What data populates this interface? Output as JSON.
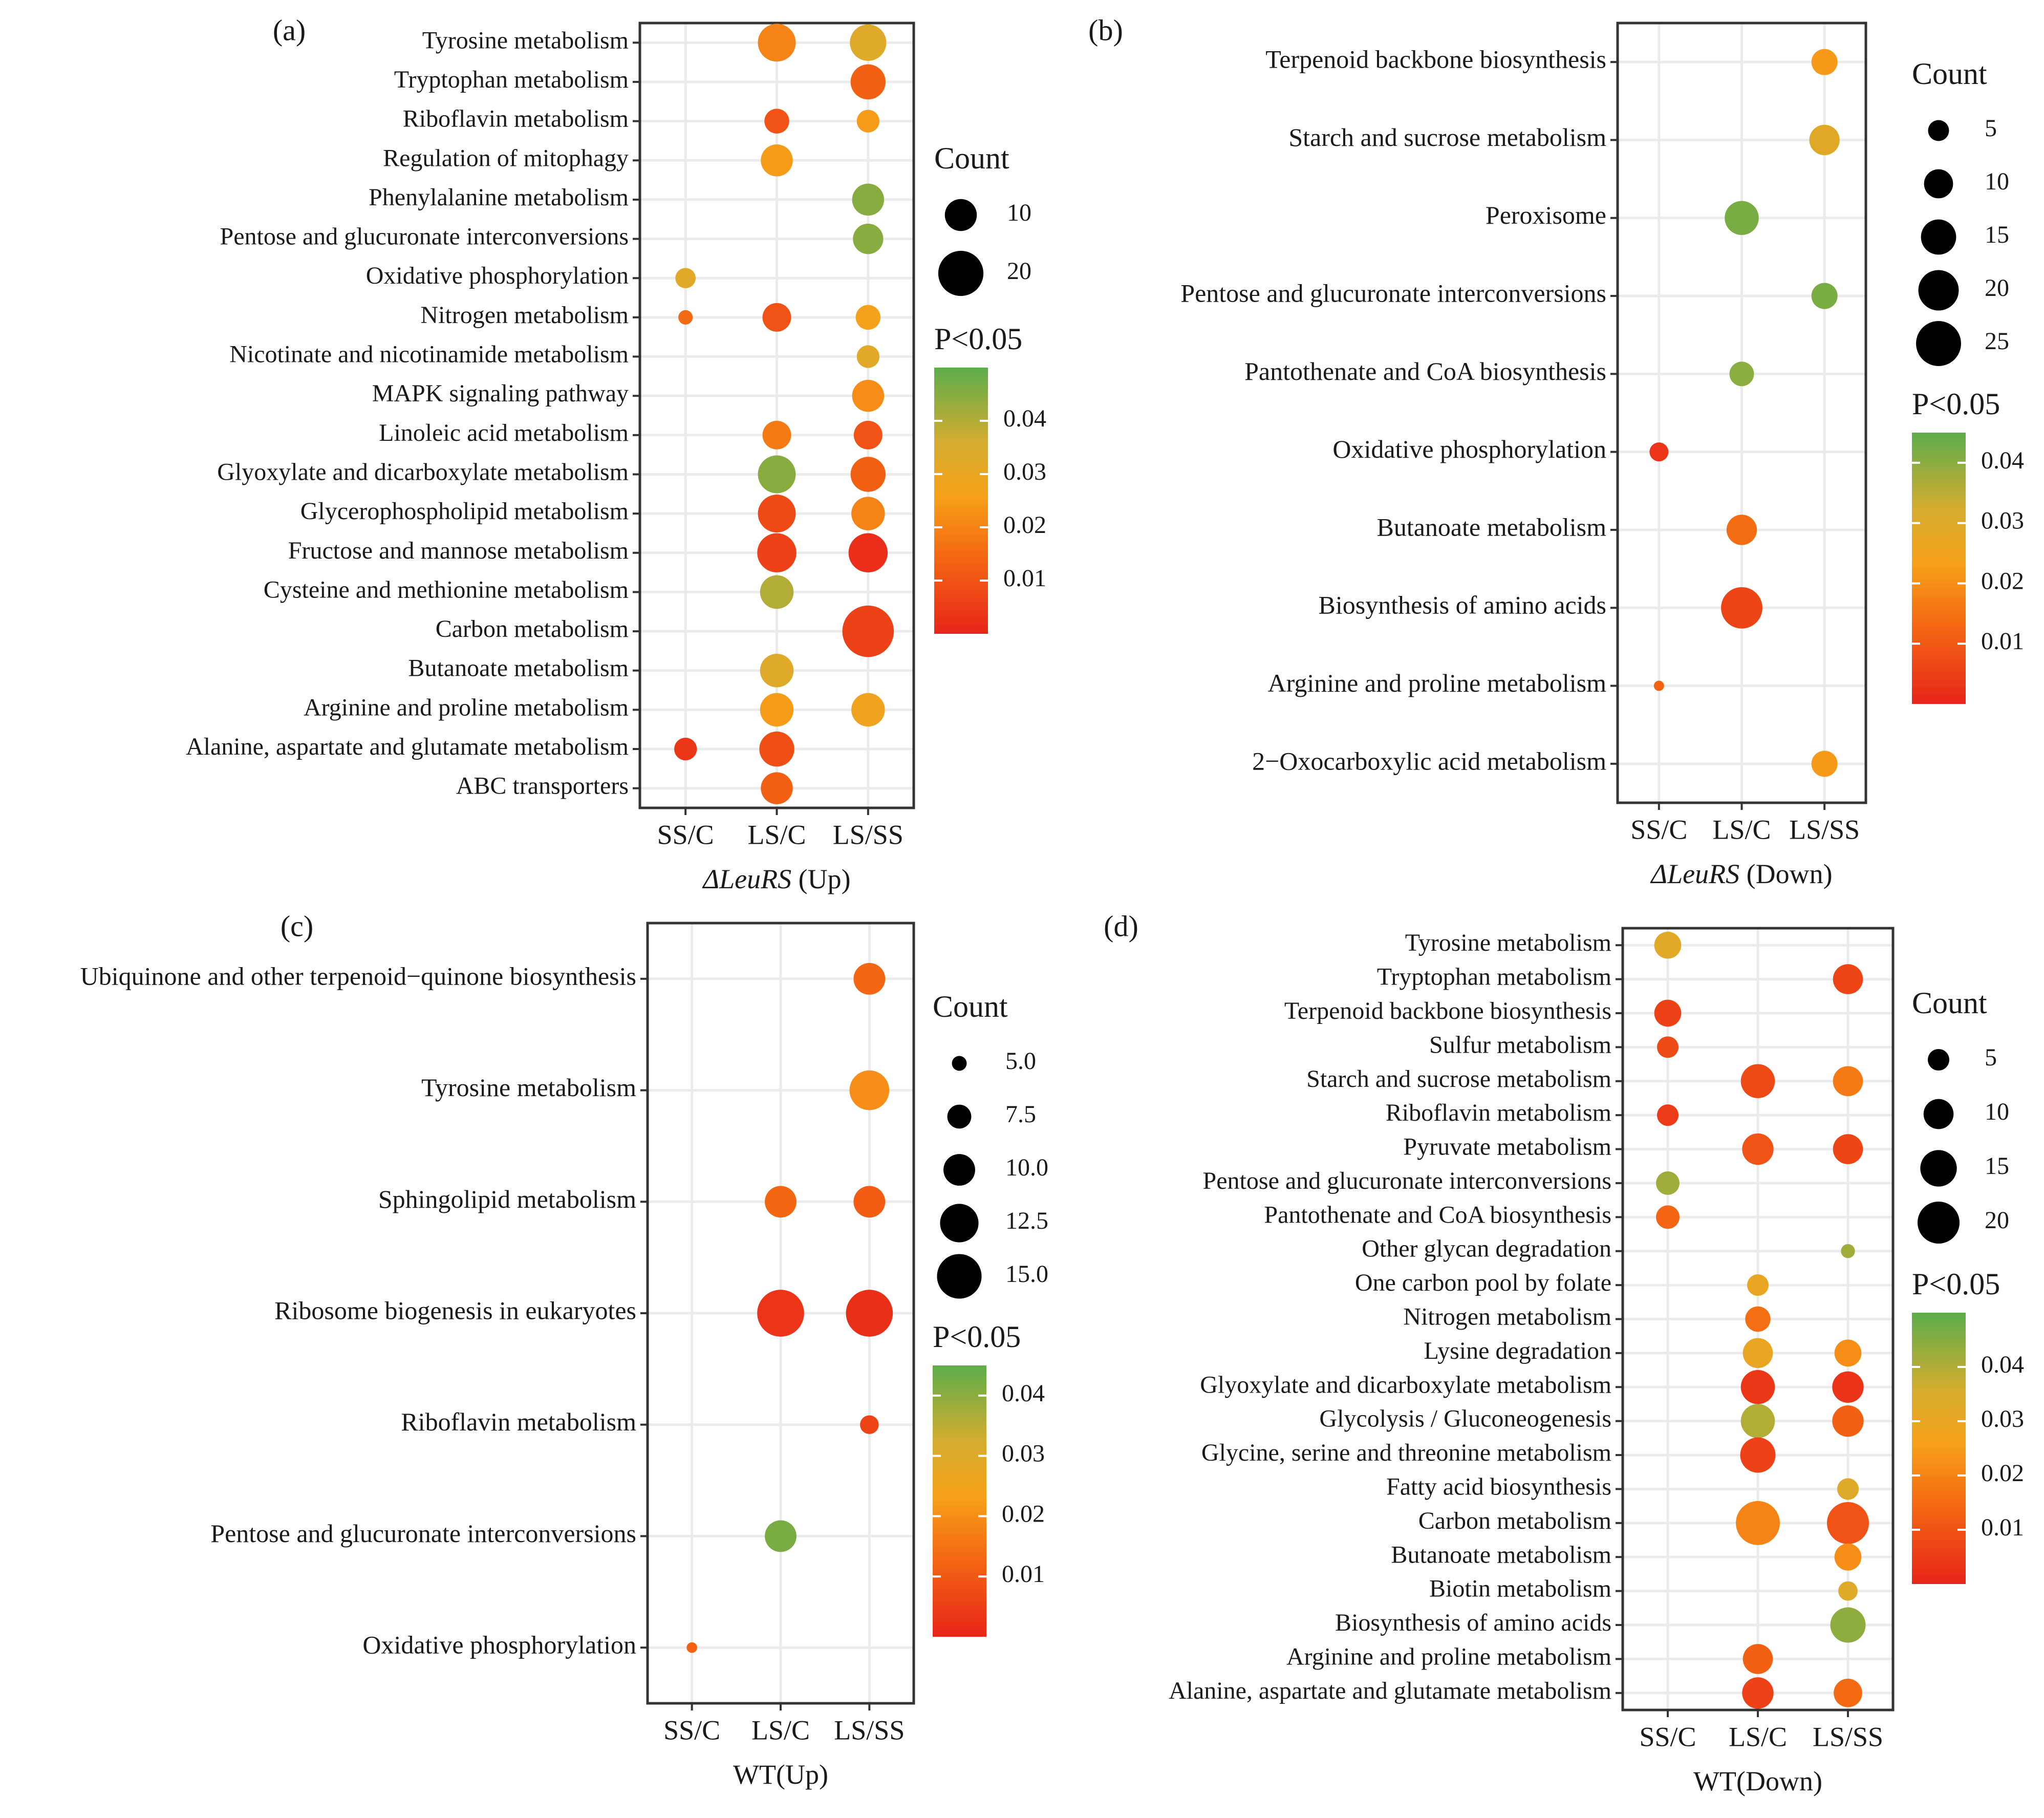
{
  "figure": {
    "legend_count_title": "Count",
    "legend_p_title": "P<0.05",
    "p_tick_labels": [
      "0.04",
      "0.03",
      "0.02",
      "0.01"
    ],
    "colors": {
      "low_p": "#e8251a",
      "mid_p": "#f7a11a",
      "mid2_p": "#d4ad2f",
      "high_p": "#5cad4b"
    }
  },
  "chart_data": [
    {
      "type": "scatter",
      "panel": "(a)",
      "title": "",
      "xlabel_italic": "ΔLeuRS",
      "xlabel_rest": " (Up)",
      "categories": [
        "SS/C",
        "LS/C",
        "LS/SS"
      ],
      "pathways": [
        "Tyrosine metabolism",
        "Tryptophan metabolism",
        "Riboflavin metabolism",
        "Regulation of mitophagy",
        "Phenylalanine metabolism",
        "Pentose and glucuronate interconversions",
        "Oxidative phosphorylation",
        "Nitrogen metabolism",
        "Nicotinate and nicotinamide metabolism",
        "MAPK signaling pathway",
        "Linoleic acid metabolism",
        "Glyoxylate and dicarboxylate metabolism",
        "Glycerophospholipid metabolism",
        "Fructose and mannose metabolism",
        "Cysteine and methionine metabolism",
        "Carbon metabolism",
        "Butanoate metabolism",
        "Arginine and proline metabolism",
        "Alanine, aspartate and glutamate metabolism",
        "ABC transporters"
      ],
      "count_range": [
        1,
        30
      ],
      "size_legend": [
        "10",
        "20"
      ],
      "size_legend_values": [
        10,
        20
      ],
      "p_range": [
        0,
        0.05
      ],
      "points": [
        {
          "pathway": "Tyrosine metabolism",
          "comparison": "LS/C",
          "count": 14,
          "p": 0.02
        },
        {
          "pathway": "Tyrosine metabolism",
          "comparison": "LS/SS",
          "count": 13,
          "p": 0.033
        },
        {
          "pathway": "Tryptophan metabolism",
          "comparison": "LS/SS",
          "count": 12,
          "p": 0.013
        },
        {
          "pathway": "Riboflavin metabolism",
          "comparison": "LS/C",
          "count": 6,
          "p": 0.01
        },
        {
          "pathway": "Riboflavin metabolism",
          "comparison": "LS/SS",
          "count": 5,
          "p": 0.025
        },
        {
          "pathway": "Regulation of mitophagy",
          "comparison": "LS/C",
          "count": 10,
          "p": 0.025
        },
        {
          "pathway": "Phenylalanine metabolism",
          "comparison": "LS/SS",
          "count": 10,
          "p": 0.045
        },
        {
          "pathway": "Pentose and glucuronate interconversions",
          "comparison": "LS/SS",
          "count": 9,
          "p": 0.045
        },
        {
          "pathway": "Oxidative phosphorylation",
          "comparison": "SS/C",
          "count": 4,
          "p": 0.032
        },
        {
          "pathway": "Nitrogen metabolism",
          "comparison": "SS/C",
          "count": 2,
          "p": 0.015
        },
        {
          "pathway": "Nitrogen metabolism",
          "comparison": "LS/C",
          "count": 8,
          "p": 0.01
        },
        {
          "pathway": "Nitrogen metabolism",
          "comparison": "LS/SS",
          "count": 6,
          "p": 0.027
        },
        {
          "pathway": "Nicotinate and nicotinamide metabolism",
          "comparison": "LS/SS",
          "count": 5,
          "p": 0.032
        },
        {
          "pathway": "MAPK signaling pathway",
          "comparison": "LS/SS",
          "count": 10,
          "p": 0.022
        },
        {
          "pathway": "Linoleic acid metabolism",
          "comparison": "LS/C",
          "count": 8,
          "p": 0.018
        },
        {
          "pathway": "Linoleic acid metabolism",
          "comparison": "LS/SS",
          "count": 8,
          "p": 0.01
        },
        {
          "pathway": "Glyoxylate and dicarboxylate metabolism",
          "comparison": "LS/C",
          "count": 14,
          "p": 0.045
        },
        {
          "pathway": "Glyoxylate and dicarboxylate metabolism",
          "comparison": "LS/SS",
          "count": 12,
          "p": 0.013
        },
        {
          "pathway": "Glycerophospholipid metabolism",
          "comparison": "LS/C",
          "count": 14,
          "p": 0.008
        },
        {
          "pathway": "Glycerophospholipid metabolism",
          "comparison": "LS/SS",
          "count": 11,
          "p": 0.02
        },
        {
          "pathway": "Fructose and mannose metabolism",
          "comparison": "LS/C",
          "count": 15,
          "p": 0.006
        },
        {
          "pathway": "Fructose and mannose metabolism",
          "comparison": "LS/SS",
          "count": 15,
          "p": 0.002
        },
        {
          "pathway": "Cysteine and methionine metabolism",
          "comparison": "LS/C",
          "count": 11,
          "p": 0.04
        },
        {
          "pathway": "Carbon metabolism",
          "comparison": "LS/SS",
          "count": 26,
          "p": 0.006
        },
        {
          "pathway": "Butanoate metabolism",
          "comparison": "LS/C",
          "count": 11,
          "p": 0.033
        },
        {
          "pathway": "Arginine and proline metabolism",
          "comparison": "LS/C",
          "count": 11,
          "p": 0.025
        },
        {
          "pathway": "Arginine and proline metabolism",
          "comparison": "LS/SS",
          "count": 11,
          "p": 0.028
        },
        {
          "pathway": "Alanine, aspartate and glutamate metabolism",
          "comparison": "SS/C",
          "count": 5,
          "p": 0.004
        },
        {
          "pathway": "Alanine, aspartate and glutamate metabolism",
          "comparison": "LS/C",
          "count": 12,
          "p": 0.009
        },
        {
          "pathway": "ABC transporters",
          "comparison": "LS/C",
          "count": 10,
          "p": 0.013
        }
      ]
    },
    {
      "type": "scatter",
      "panel": "(b)",
      "title": "",
      "xlabel_italic": "ΔLeuRS",
      "xlabel_rest": " (Down)",
      "categories": [
        "SS/C",
        "LS/C",
        "LS/SS"
      ],
      "pathways": [
        "Terpenoid backbone biosynthesis",
        "Starch and sucrose metabolism",
        "Peroxisome",
        "Pentose and glucuronate interconversions",
        "Pantothenate and CoA biosynthesis",
        "Oxidative phosphorylation",
        "Butanoate metabolism",
        "Biosynthesis of amino acids",
        "Arginine and proline metabolism",
        "2−Oxocarboxylic acid metabolism"
      ],
      "count_range": [
        1,
        30
      ],
      "size_legend": [
        "5",
        "10",
        "15",
        "20",
        "25"
      ],
      "size_legend_values": [
        5,
        10,
        15,
        20,
        25
      ],
      "p_range": [
        0,
        0.045
      ],
      "points": [
        {
          "pathway": "Terpenoid backbone biosynthesis",
          "comparison": "LS/SS",
          "count": 8,
          "p": 0.022
        },
        {
          "pathway": "Starch and sucrose metabolism",
          "comparison": "LS/SS",
          "count": 11,
          "p": 0.029
        },
        {
          "pathway": "Peroxisome",
          "comparison": "LS/C",
          "count": 14,
          "p": 0.042
        },
        {
          "pathway": "Pentose and glucuronate interconversions",
          "comparison": "LS/SS",
          "count": 8,
          "p": 0.042
        },
        {
          "pathway": "Pantothenate and CoA biosynthesis",
          "comparison": "LS/C",
          "count": 7,
          "p": 0.04
        },
        {
          "pathway": "Oxidative phosphorylation",
          "comparison": "SS/C",
          "count": 4,
          "p": 0.003
        },
        {
          "pathway": "Butanoate metabolism",
          "comparison": "LS/C",
          "count": 11,
          "p": 0.014
        },
        {
          "pathway": "Biosynthesis of amino acids",
          "comparison": "LS/C",
          "count": 21,
          "p": 0.006
        },
        {
          "pathway": "Arginine and proline metabolism",
          "comparison": "SS/C",
          "count": 1,
          "p": 0.012
        },
        {
          "pathway": "2−Oxocarboxylic acid metabolism",
          "comparison": "LS/SS",
          "count": 8,
          "p": 0.022
        }
      ]
    },
    {
      "type": "scatter",
      "panel": "(c)",
      "title": "",
      "xlabel_italic": "",
      "xlabel_rest": "WT(Up)",
      "categories": [
        "SS/C",
        "LS/C",
        "LS/SS"
      ],
      "pathways": [
        "Ubiquinone and other terpenoid−quinone biosynthesis",
        "Tyrosine metabolism",
        "Sphingolipid metabolism",
        "Ribosome biogenesis in eukaryotes",
        "Riboflavin metabolism",
        "Pentose and glucuronate interconversions",
        "Oxidative phosphorylation"
      ],
      "count_range": [
        3.5,
        17
      ],
      "size_legend": [
        "5.0",
        "7.5",
        "10.0",
        "12.5",
        "15.0"
      ],
      "size_legend_values": [
        5,
        7.5,
        10,
        12.5,
        15
      ],
      "p_range": [
        0,
        0.045
      ],
      "points": [
        {
          "pathway": "Ubiquinone and other terpenoid−quinone biosynthesis",
          "comparison": "LS/SS",
          "count": 10,
          "p": 0.013
        },
        {
          "pathway": "Tyrosine metabolism",
          "comparison": "LS/SS",
          "count": 13,
          "p": 0.02
        },
        {
          "pathway": "Sphingolipid metabolism",
          "comparison": "LS/C",
          "count": 10,
          "p": 0.013
        },
        {
          "pathway": "Sphingolipid metabolism",
          "comparison": "LS/SS",
          "count": 10,
          "p": 0.011
        },
        {
          "pathway": "Ribosome biogenesis in eukaryotes",
          "comparison": "LS/C",
          "count": 16,
          "p": 0.003
        },
        {
          "pathway": "Ribosome biogenesis in eukaryotes",
          "comparison": "LS/SS",
          "count": 16,
          "p": 0.002
        },
        {
          "pathway": "Riboflavin metabolism",
          "comparison": "LS/SS",
          "count": 6,
          "p": 0.006
        },
        {
          "pathway": "Pentose and glucuronate interconversions",
          "comparison": "LS/C",
          "count": 10,
          "p": 0.042
        },
        {
          "pathway": "Oxidative phosphorylation",
          "comparison": "SS/C",
          "count": 4,
          "p": 0.012
        }
      ]
    },
    {
      "type": "scatter",
      "panel": "(d)",
      "title": "",
      "xlabel_italic": "",
      "xlabel_rest": "WT(Down)",
      "categories": [
        "SS/C",
        "LS/C",
        "LS/SS"
      ],
      "pathways": [
        "Tyrosine metabolism",
        "Tryptophan metabolism",
        "Terpenoid backbone biosynthesis",
        "Sulfur metabolism",
        "Starch and sucrose metabolism",
        "Riboflavin metabolism",
        "Pyruvate metabolism",
        "Pentose and glucuronate interconversions",
        "Pantothenate and CoA biosynthesis",
        "Other glycan degradation",
        "One carbon pool by folate",
        "Nitrogen metabolism",
        "Lysine degradation",
        "Glyoxylate and dicarboxylate metabolism",
        "Glycolysis / Gluconeogenesis",
        "Glycine, serine and threonine metabolism",
        "Fatty acid biosynthesis",
        "Carbon metabolism",
        "Butanoate metabolism",
        "Biotin metabolism",
        "Biosynthesis of amino acids",
        "Arginine and proline metabolism",
        "Alanine, aspartate and glutamate metabolism"
      ],
      "count_range": [
        1,
        30
      ],
      "size_legend": [
        "5",
        "10",
        "15",
        "20"
      ],
      "size_legend_values": [
        5,
        10,
        15,
        20
      ],
      "p_range": [
        0,
        0.05
      ],
      "points": [
        {
          "pathway": "Tyrosine metabolism",
          "comparison": "SS/C",
          "count": 8,
          "p": 0.032
        },
        {
          "pathway": "Tryptophan metabolism",
          "comparison": "LS/SS",
          "count": 10,
          "p": 0.007
        },
        {
          "pathway": "Terpenoid backbone biosynthesis",
          "comparison": "SS/C",
          "count": 8,
          "p": 0.006
        },
        {
          "pathway": "Sulfur metabolism",
          "comparison": "SS/C",
          "count": 5,
          "p": 0.008
        },
        {
          "pathway": "Starch and sucrose metabolism",
          "comparison": "LS/C",
          "count": 13,
          "p": 0.008
        },
        {
          "pathway": "Starch and sucrose metabolism",
          "comparison": "LS/SS",
          "count": 10,
          "p": 0.018
        },
        {
          "pathway": "Riboflavin metabolism",
          "comparison": "SS/C",
          "count": 5,
          "p": 0.005
        },
        {
          "pathway": "Pyruvate metabolism",
          "comparison": "LS/C",
          "count": 11,
          "p": 0.01
        },
        {
          "pathway": "Pyruvate metabolism",
          "comparison": "LS/SS",
          "count": 10,
          "p": 0.007
        },
        {
          "pathway": "Pentose and glucuronate interconversions",
          "comparison": "SS/C",
          "count": 6,
          "p": 0.042
        },
        {
          "pathway": "Pantothenate and CoA biosynthesis",
          "comparison": "SS/C",
          "count": 6,
          "p": 0.014
        },
        {
          "pathway": "Other glycan degradation",
          "comparison": "LS/SS",
          "count": 2,
          "p": 0.042
        },
        {
          "pathway": "One carbon pool by folate",
          "comparison": "LS/C",
          "count": 5,
          "p": 0.03
        },
        {
          "pathway": "Nitrogen metabolism",
          "comparison": "LS/C",
          "count": 7,
          "p": 0.016
        },
        {
          "pathway": "Lysine degradation",
          "comparison": "LS/C",
          "count": 10,
          "p": 0.03
        },
        {
          "pathway": "Lysine degradation",
          "comparison": "LS/SS",
          "count": 8,
          "p": 0.022
        },
        {
          "pathway": "Glyoxylate and dicarboxylate metabolism",
          "comparison": "LS/C",
          "count": 13,
          "p": 0.004
        },
        {
          "pathway": "Glyoxylate and dicarboxylate metabolism",
          "comparison": "LS/SS",
          "count": 11,
          "p": 0.003
        },
        {
          "pathway": "Glycolysis / Gluconeogenesis",
          "comparison": "LS/C",
          "count": 13,
          "p": 0.04
        },
        {
          "pathway": "Glycolysis / Gluconeogenesis",
          "comparison": "LS/SS",
          "count": 11,
          "p": 0.013
        },
        {
          "pathway": "Glycine, serine and threonine metabolism",
          "comparison": "LS/C",
          "count": 14,
          "p": 0.006
        },
        {
          "pathway": "Fatty acid biosynthesis",
          "comparison": "LS/SS",
          "count": 5,
          "p": 0.033
        },
        {
          "pathway": "Carbon metabolism",
          "comparison": "LS/C",
          "count": 22,
          "p": 0.02
        },
        {
          "pathway": "Carbon metabolism",
          "comparison": "LS/SS",
          "count": 20,
          "p": 0.01
        },
        {
          "pathway": "Butanoate metabolism",
          "comparison": "LS/SS",
          "count": 8,
          "p": 0.022
        },
        {
          "pathway": "Biotin metabolism",
          "comparison": "LS/SS",
          "count": 4,
          "p": 0.033
        },
        {
          "pathway": "Biosynthesis of amino acids",
          "comparison": "LS/SS",
          "count": 14,
          "p": 0.044
        },
        {
          "pathway": "Arginine and proline metabolism",
          "comparison": "LS/C",
          "count": 10,
          "p": 0.013
        },
        {
          "pathway": "Alanine, aspartate and glutamate metabolism",
          "comparison": "LS/C",
          "count": 11,
          "p": 0.006
        },
        {
          "pathway": "Alanine, aspartate and glutamate metabolism",
          "comparison": "LS/SS",
          "count": 9,
          "p": 0.015
        }
      ]
    }
  ]
}
